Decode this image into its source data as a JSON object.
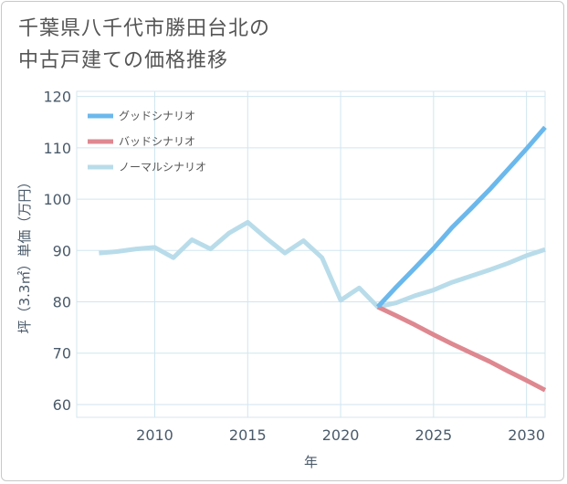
{
  "header": {
    "title_line1": "千葉県八千代市勝田台北の",
    "title_line2": "中古戸建ての価格推移"
  },
  "colors": {
    "good": "#6bb8ec",
    "bad": "#de8890",
    "normal": "#b9dcea",
    "grid": "#d0e6ef",
    "axis": "#4a5a6a"
  },
  "chart_data": {
    "type": "line",
    "title": "千葉県八千代市勝田台北の中古戸建ての価格推移",
    "xlabel": "年",
    "ylabel": "坪（3.3㎡）単価（万円）",
    "xlim": [
      2005.8,
      2031
    ],
    "ylim": [
      57.5,
      121
    ],
    "xticks": [
      2010,
      2015,
      2020,
      2025,
      2030
    ],
    "yticks": [
      60,
      70,
      80,
      90,
      100,
      110,
      120
    ],
    "grid": true,
    "legend_position": "top-left",
    "series": [
      {
        "name": "グッドシナリオ",
        "key": "good",
        "x": [
          2022,
          2023,
          2024,
          2025,
          2026,
          2027,
          2028,
          2029,
          2030,
          2031
        ],
        "values": [
          79,
          82.9,
          86.6,
          90.4,
          94.5,
          98.1,
          101.8,
          105.8,
          109.8,
          114
        ]
      },
      {
        "name": "バッドシナリオ",
        "key": "bad",
        "x": [
          2022,
          2023,
          2024,
          2025,
          2026,
          2027,
          2028,
          2029,
          2030,
          2031
        ],
        "values": [
          79,
          77.3,
          75.5,
          73.6,
          71.8,
          70.1,
          68.4,
          66.5,
          64.7,
          62.8
        ]
      },
      {
        "name": "ノーマルシナリオ",
        "key": "normal",
        "x": [
          2007,
          2008,
          2009,
          2010,
          2011,
          2012,
          2013,
          2014,
          2015,
          2016,
          2017,
          2018,
          2019,
          2020,
          2021,
          2022,
          2023,
          2024,
          2025,
          2026,
          2027,
          2028,
          2029,
          2030,
          2031
        ],
        "values": [
          89.5,
          89.8,
          90.3,
          90.6,
          88.6,
          92.1,
          90.3,
          93.4,
          95.5,
          92.4,
          89.5,
          91.9,
          88.6,
          80.3,
          82.7,
          79,
          79.8,
          81.2,
          82.3,
          83.8,
          85,
          86.2,
          87.5,
          89,
          90.2
        ]
      }
    ]
  }
}
